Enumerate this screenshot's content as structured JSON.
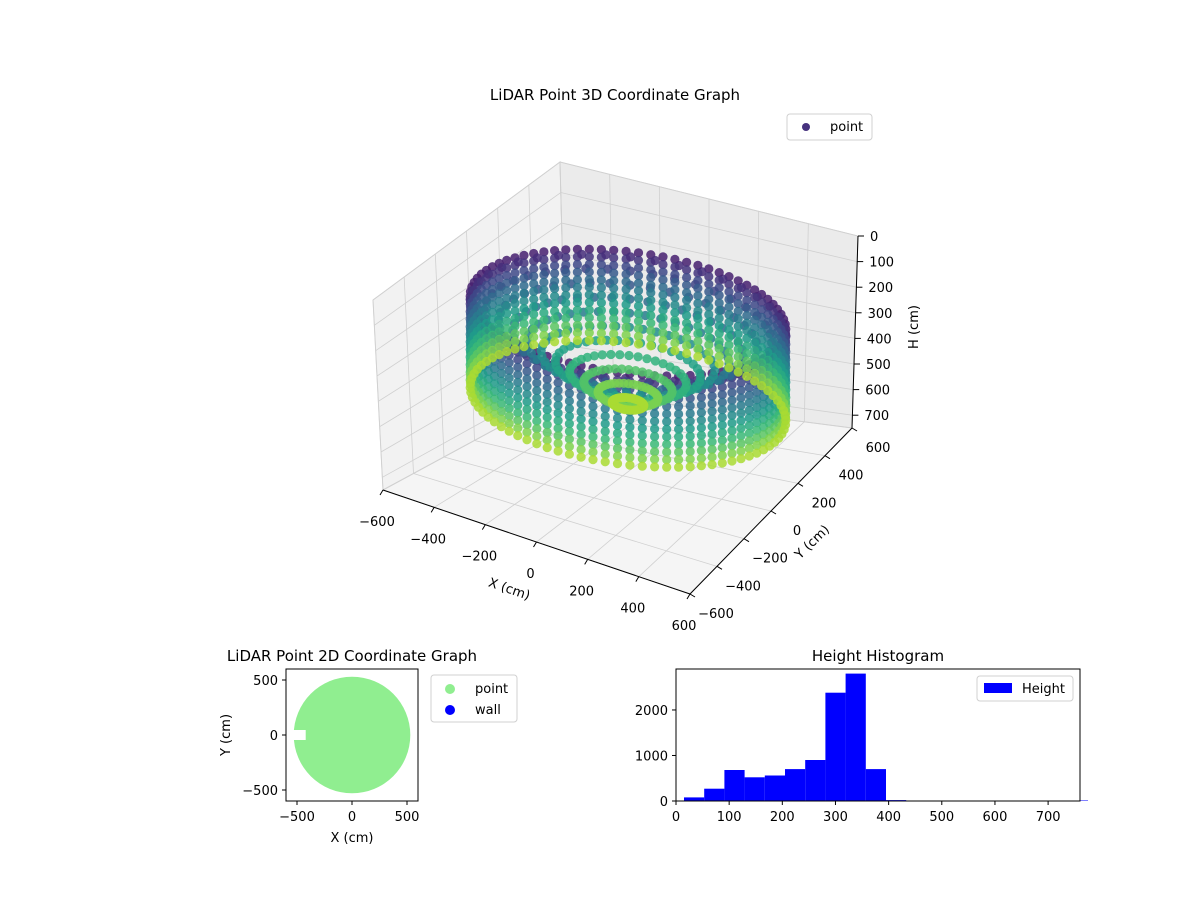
{
  "colors": {
    "point_2d": "#90ee90",
    "wall_2d": "#0000ff",
    "histogram": "#0000ff",
    "viridis_dark": "#46327e",
    "viridis_mid": "#21918c",
    "viridis_light": "#a0da39"
  },
  "chart_data": [
    {
      "type": "scatter",
      "title": "LiDAR Point 3D Coordinate Graph",
      "xlabel": "X (cm)",
      "ylabel": "Y (cm)",
      "zlabel": "H (cm)",
      "xlim": [
        -600,
        600
      ],
      "ylim": [
        -600,
        600
      ],
      "zlim": [
        750,
        0
      ],
      "x_ticks": [
        "−600",
        "−400",
        "−200",
        "0",
        "200",
        "400",
        "600"
      ],
      "y_ticks": [
        "−600",
        "−400",
        "−200",
        "0",
        "200",
        "400",
        "600"
      ],
      "z_ticks": [
        "0",
        "100",
        "200",
        "300",
        "400",
        "500",
        "600",
        "700"
      ],
      "legend": [
        "point"
      ],
      "legend_position": "upper-right",
      "colormap": "viridis (by height)",
      "grid": true
    },
    {
      "type": "scatter",
      "title": "LiDAR Point 2D Coordinate Graph",
      "xlabel": "X (cm)",
      "ylabel": "Y (cm)",
      "xlim": [
        -600,
        600
      ],
      "ylim": [
        -600,
        600
      ],
      "x_ticks": [
        "−500",
        "0",
        "500"
      ],
      "y_ticks": [
        "500",
        "0",
        "−500"
      ],
      "series": [
        {
          "name": "point",
          "shape": "filled disc",
          "radius": 530,
          "notch_at": [
            -530,
            0
          ]
        },
        {
          "name": "wall",
          "points": []
        }
      ],
      "legend_position": "outside-right"
    },
    {
      "type": "bar",
      "title": "Height Histogram",
      "xlabel": "",
      "ylabel": "",
      "xlim": [
        0,
        760
      ],
      "ylim": [
        0,
        2900
      ],
      "x_ticks": [
        "0",
        "100",
        "200",
        "300",
        "400",
        "500",
        "600",
        "700"
      ],
      "y_ticks": [
        "0",
        "1000",
        "2000"
      ],
      "bin_width": 38,
      "bin_starts": [
        15,
        53,
        91,
        129,
        167,
        205,
        243,
        281,
        319,
        357,
        395,
        433,
        471,
        509,
        547,
        585,
        623,
        661,
        699,
        737
      ],
      "series": [
        {
          "name": "Height",
          "values": [
            80,
            270,
            680,
            520,
            560,
            700,
            900,
            2380,
            2800,
            700,
            20,
            10,
            10,
            10,
            10,
            10,
            10,
            10,
            10,
            10
          ]
        }
      ],
      "legend_position": "upper-right"
    }
  ]
}
